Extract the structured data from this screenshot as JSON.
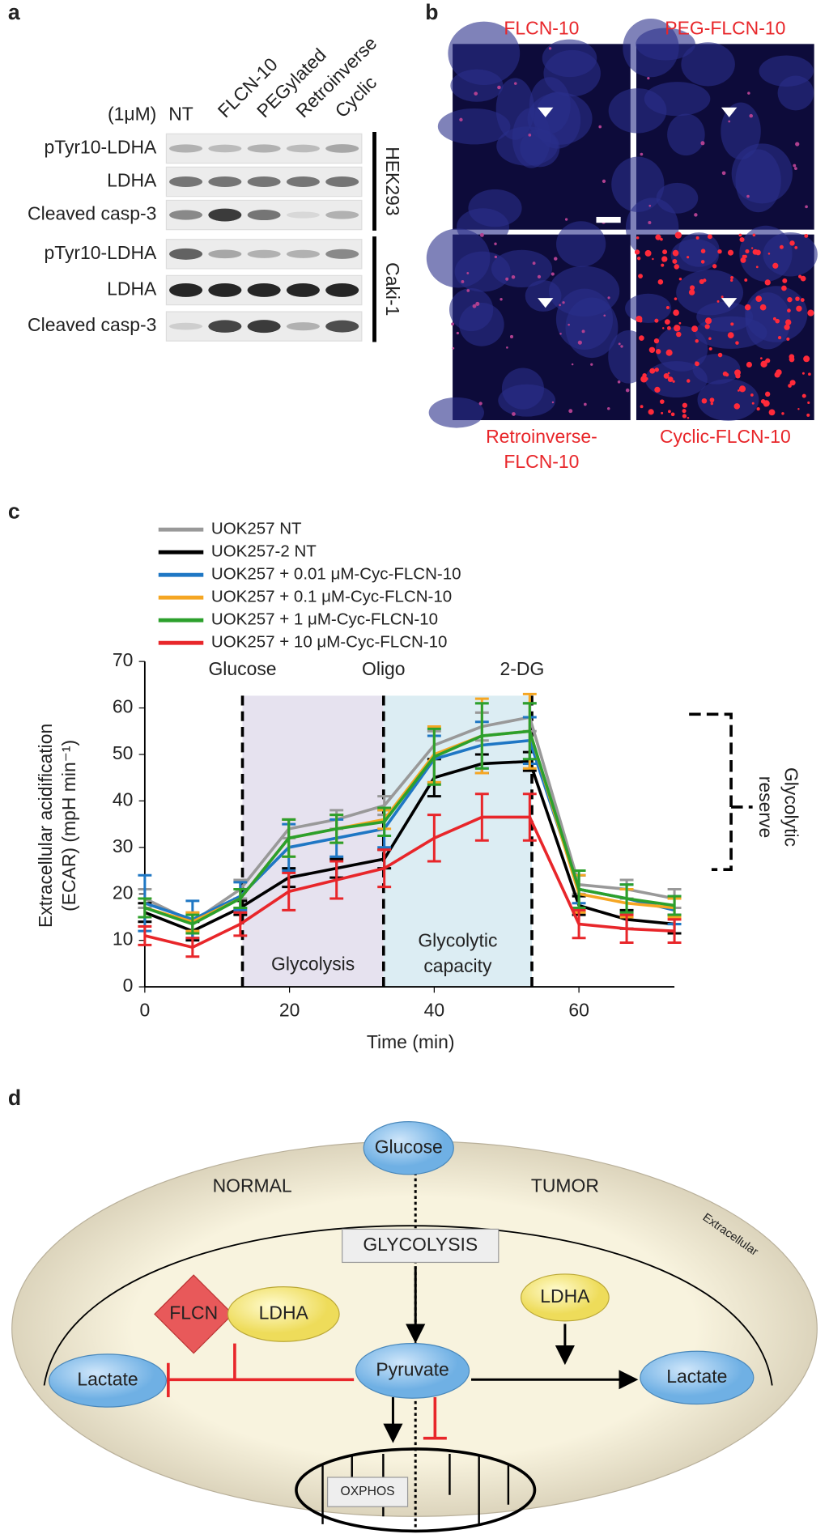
{
  "panel_a": {
    "label": "a",
    "conc": "(1μM)",
    "lanes": [
      "NT",
      "FLCN-10",
      "PEGylated",
      "Retroinverse",
      "Cyclic"
    ],
    "rows": [
      "pTyr10-LDHA",
      "LDHA",
      "Cleaved casp-3",
      "pTyr10-LDHA",
      "LDHA",
      "Cleaved casp-3"
    ],
    "cell_lines": [
      "HEK293",
      "Caki-1"
    ]
  },
  "panel_b": {
    "label": "b",
    "captions": [
      [
        "FLCN-10"
      ],
      [
        "PEG-FLCN-10"
      ],
      [
        "Retroinverse-",
        "FLCN-10"
      ],
      [
        "Cyclic-FLCN-10"
      ]
    ]
  },
  "chart_data": {
    "label": "c",
    "type": "line",
    "x": [
      0,
      6.6,
      13.2,
      19.9,
      26.5,
      33.1,
      40,
      46.6,
      53.2,
      60,
      66.6,
      73.2
    ],
    "series": [
      {
        "name": "UOK257 NT",
        "color": "#999999",
        "values": [
          19,
          14,
          21,
          34,
          36,
          39,
          52,
          56,
          58,
          22,
          21,
          19
        ],
        "errors": [
          2,
          2,
          2,
          2,
          2,
          2,
          3,
          3,
          3,
          2,
          2,
          2
        ]
      },
      {
        "name": "UOK257-2 NT",
        "color": "#000000",
        "values": [
          16,
          12,
          17,
          23.5,
          25.5,
          27.5,
          45,
          48,
          48.5,
          17.5,
          14.5,
          13.5
        ],
        "errors": [
          2,
          2,
          1.5,
          2,
          2,
          2,
          4,
          2,
          2,
          2,
          2,
          2
        ]
      },
      {
        "name": "UOK257 + 0.01 μM-Cyc-FLCN-10",
        "color": "#1f77c4",
        "values": [
          18,
          14.5,
          19.5,
          30,
          32,
          34,
          49,
          52,
          53,
          21,
          19,
          16.5
        ],
        "errors": [
          6,
          4,
          3,
          5,
          4,
          4,
          5,
          5,
          5,
          3,
          3,
          3
        ]
      },
      {
        "name": "UOK257 + 0.1 μM-Cyc-FLCN-10",
        "color": "#f5a623",
        "values": [
          17,
          14,
          19,
          32,
          34,
          36,
          50,
          54,
          55,
          20,
          18,
          17
        ],
        "errors": [
          2,
          2,
          2,
          4,
          3,
          2,
          6,
          8,
          8,
          4,
          3,
          2
        ]
      },
      {
        "name": "UOK257 + 1 μM-Cyc-FLCN-10",
        "color": "#2ca02c",
        "values": [
          17,
          13.5,
          19,
          32,
          34,
          35.5,
          49.5,
          54,
          55,
          21,
          19,
          17.5
        ],
        "errors": [
          2,
          2,
          2,
          4,
          3,
          3,
          6,
          7,
          6,
          4,
          3,
          2
        ]
      },
      {
        "name": "UOK257 + 10 μM-Cyc-FLCN-10",
        "color": "#e8262a",
        "values": [
          11,
          8.5,
          13.5,
          20.5,
          23,
          25.5,
          32,
          36.5,
          36.5,
          13.5,
          12.5,
          12
        ],
        "errors": [
          2,
          2,
          2.5,
          4,
          4,
          4,
          5,
          5,
          5,
          3,
          3,
          2.5
        ]
      }
    ],
    "xlim": [
      0,
      73.2
    ],
    "ylim": [
      0,
      70
    ],
    "xticks": [
      0,
      20,
      40,
      60
    ],
    "yticks": [
      0,
      10,
      20,
      30,
      40,
      50,
      60,
      70
    ],
    "xlabel": "Time (min)",
    "ylabel": [
      "Extracellular acidification",
      "(ECAR) (mpH min⁻¹)"
    ],
    "injections": [
      {
        "label": "Glucose",
        "x": 13.5
      },
      {
        "label": "Oligo",
        "x": 33
      },
      {
        "label": "2-DG",
        "x": 53.5
      }
    ],
    "regions": [
      "Glycolysis",
      [
        "Glycolytic",
        "capacity"
      ]
    ],
    "reserve_label": [
      "Glycolytic",
      "reserve"
    ]
  },
  "panel_d": {
    "label": "d",
    "glucose": "Glucose",
    "normal": "NORMAL",
    "tumor": "TUMOR",
    "glycolysis": "GLYCOLYSIS",
    "extracellular": "Extracellular",
    "flcn": "FLCN",
    "ldha_normal": "LDHA",
    "ldha_tumor": "LDHA",
    "lactate_normal": "Lactate",
    "pyruvate": "Pyruvate",
    "lactate_tumor": "Lactate",
    "oxphos": "OXPHOS"
  }
}
